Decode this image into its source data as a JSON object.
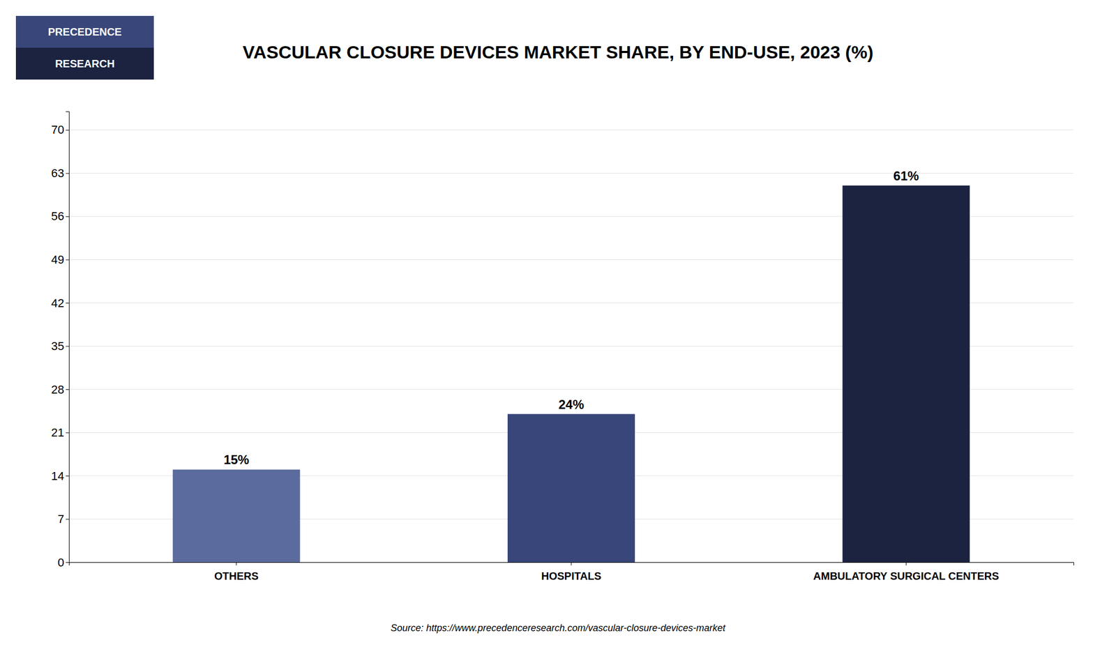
{
  "chart_data": {
    "type": "bar",
    "title": "VASCULAR CLOSURE DEVICES MARKET SHARE, BY END-USE, 2023 (%)",
    "categories": [
      "OTHERS",
      "HOSPITALS",
      "AMBULATORY SURGICAL CENTERS"
    ],
    "values": [
      15,
      24,
      61
    ],
    "value_labels": [
      "15%",
      "24%",
      "61%"
    ],
    "colors": [
      "#5c6b9e",
      "#38467a",
      "#1b2340"
    ],
    "ylim": [
      0,
      73
    ],
    "yticks": [
      0,
      7,
      14,
      21,
      28,
      35,
      42,
      49,
      56,
      63,
      70
    ],
    "grid": true,
    "data_labels": true,
    "annotations": [
      "PRECEDENCE",
      "RESEARCH"
    ],
    "source": "Source: https://www.precedenceresearch.com/vascular-closure-devices-market"
  }
}
